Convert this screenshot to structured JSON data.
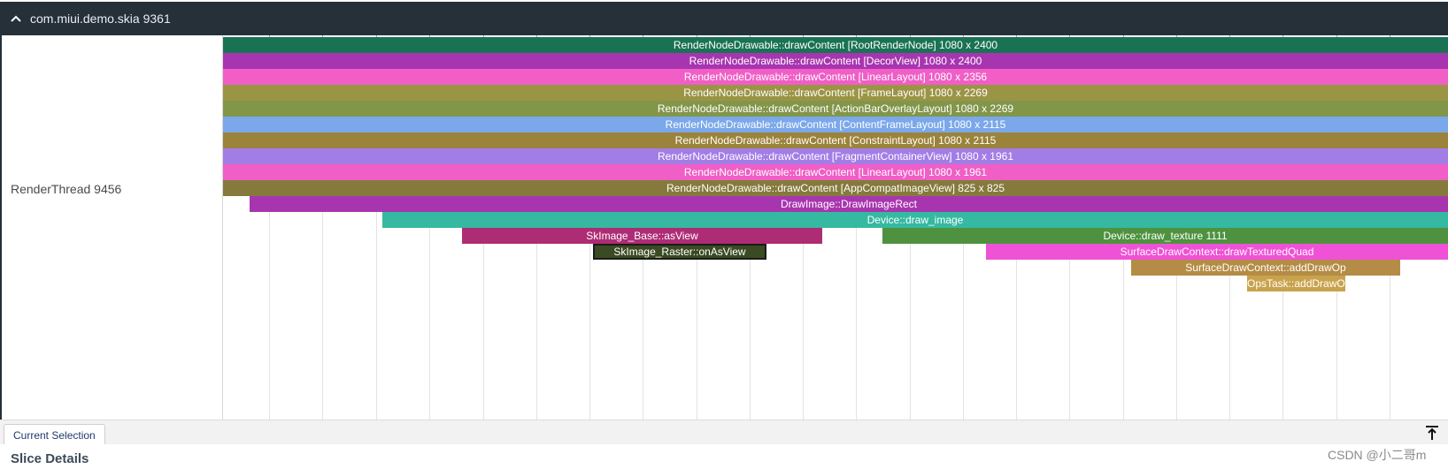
{
  "process_header": {
    "title": "com.miui.demo.skia 9361",
    "collapse_icon": "chevron-up-icon"
  },
  "thread_track": {
    "label": "RenderThread 9456"
  },
  "slices": [
    {
      "name": "RenderNodeDrawable::drawContent [RootRenderNode] 1080 x 2400",
      "depth": 0,
      "color": "#1a7255"
    },
    {
      "name": "RenderNodeDrawable::drawContent [DecorView] 1080 x 2400",
      "depth": 1,
      "color": "#a835b0"
    },
    {
      "name": "RenderNodeDrawable::drawContent [LinearLayout] 1080 x 2356",
      "depth": 2,
      "color": "#f05ec6"
    },
    {
      "name": "RenderNodeDrawable::drawContent [FrameLayout] 1080 x 2269",
      "depth": 3,
      "color": "#9b9445"
    },
    {
      "name": "RenderNodeDrawable::drawContent [ActionBarOverlayLayout] 1080 x 2269",
      "depth": 4,
      "color": "#82964a"
    },
    {
      "name": "RenderNodeDrawable::drawContent [ContentFrameLayout] 1080 x 2115",
      "depth": 5,
      "color": "#7ba8ea"
    },
    {
      "name": "RenderNodeDrawable::drawContent [ConstraintLayout] 1080 x 2115",
      "depth": 6,
      "color": "#9b833b"
    },
    {
      "name": "RenderNodeDrawable::drawContent [FragmentContainerView] 1080 x 1961",
      "depth": 7,
      "color": "#a37de6"
    },
    {
      "name": "RenderNodeDrawable::drawContent [LinearLayout] 1080 x 1961",
      "depth": 8,
      "color": "#f05ec6"
    },
    {
      "name": "RenderNodeDrawable::drawContent [AppCompatImageView] 825 x 825",
      "depth": 9,
      "color": "#857a3c"
    },
    {
      "name": "DrawImage::DrawImageRect",
      "depth": 10,
      "color": "#a835b0"
    },
    {
      "name": "Device::draw_image",
      "depth": 11,
      "color": "#35b9a1"
    },
    {
      "name": "SkImage_Base::asView",
      "depth": 12,
      "color": "#ad2c74"
    },
    {
      "name": "Device::draw_texture 1111",
      "depth": 12,
      "color": "#4e923f"
    },
    {
      "name": "SkImage_Raster::onAsView",
      "depth": 13,
      "color": "#3a4a22",
      "selected": true
    },
    {
      "name": "SurfaceDrawContext::drawTexturedQuad",
      "depth": 13,
      "color": "#ef52d6"
    },
    {
      "name": "SurfaceDrawContext::addDrawOp",
      "depth": 14,
      "color": "#b58c45"
    },
    {
      "name": "OpsTask::addDrawOp",
      "depth": 15,
      "color": "#c9a24c"
    }
  ],
  "details_panel": {
    "tab_label": "Current Selection",
    "section_title": "Slice Details",
    "pin_icon": "pin-to-top-icon"
  },
  "watermark": "CSDN @小二哥m"
}
